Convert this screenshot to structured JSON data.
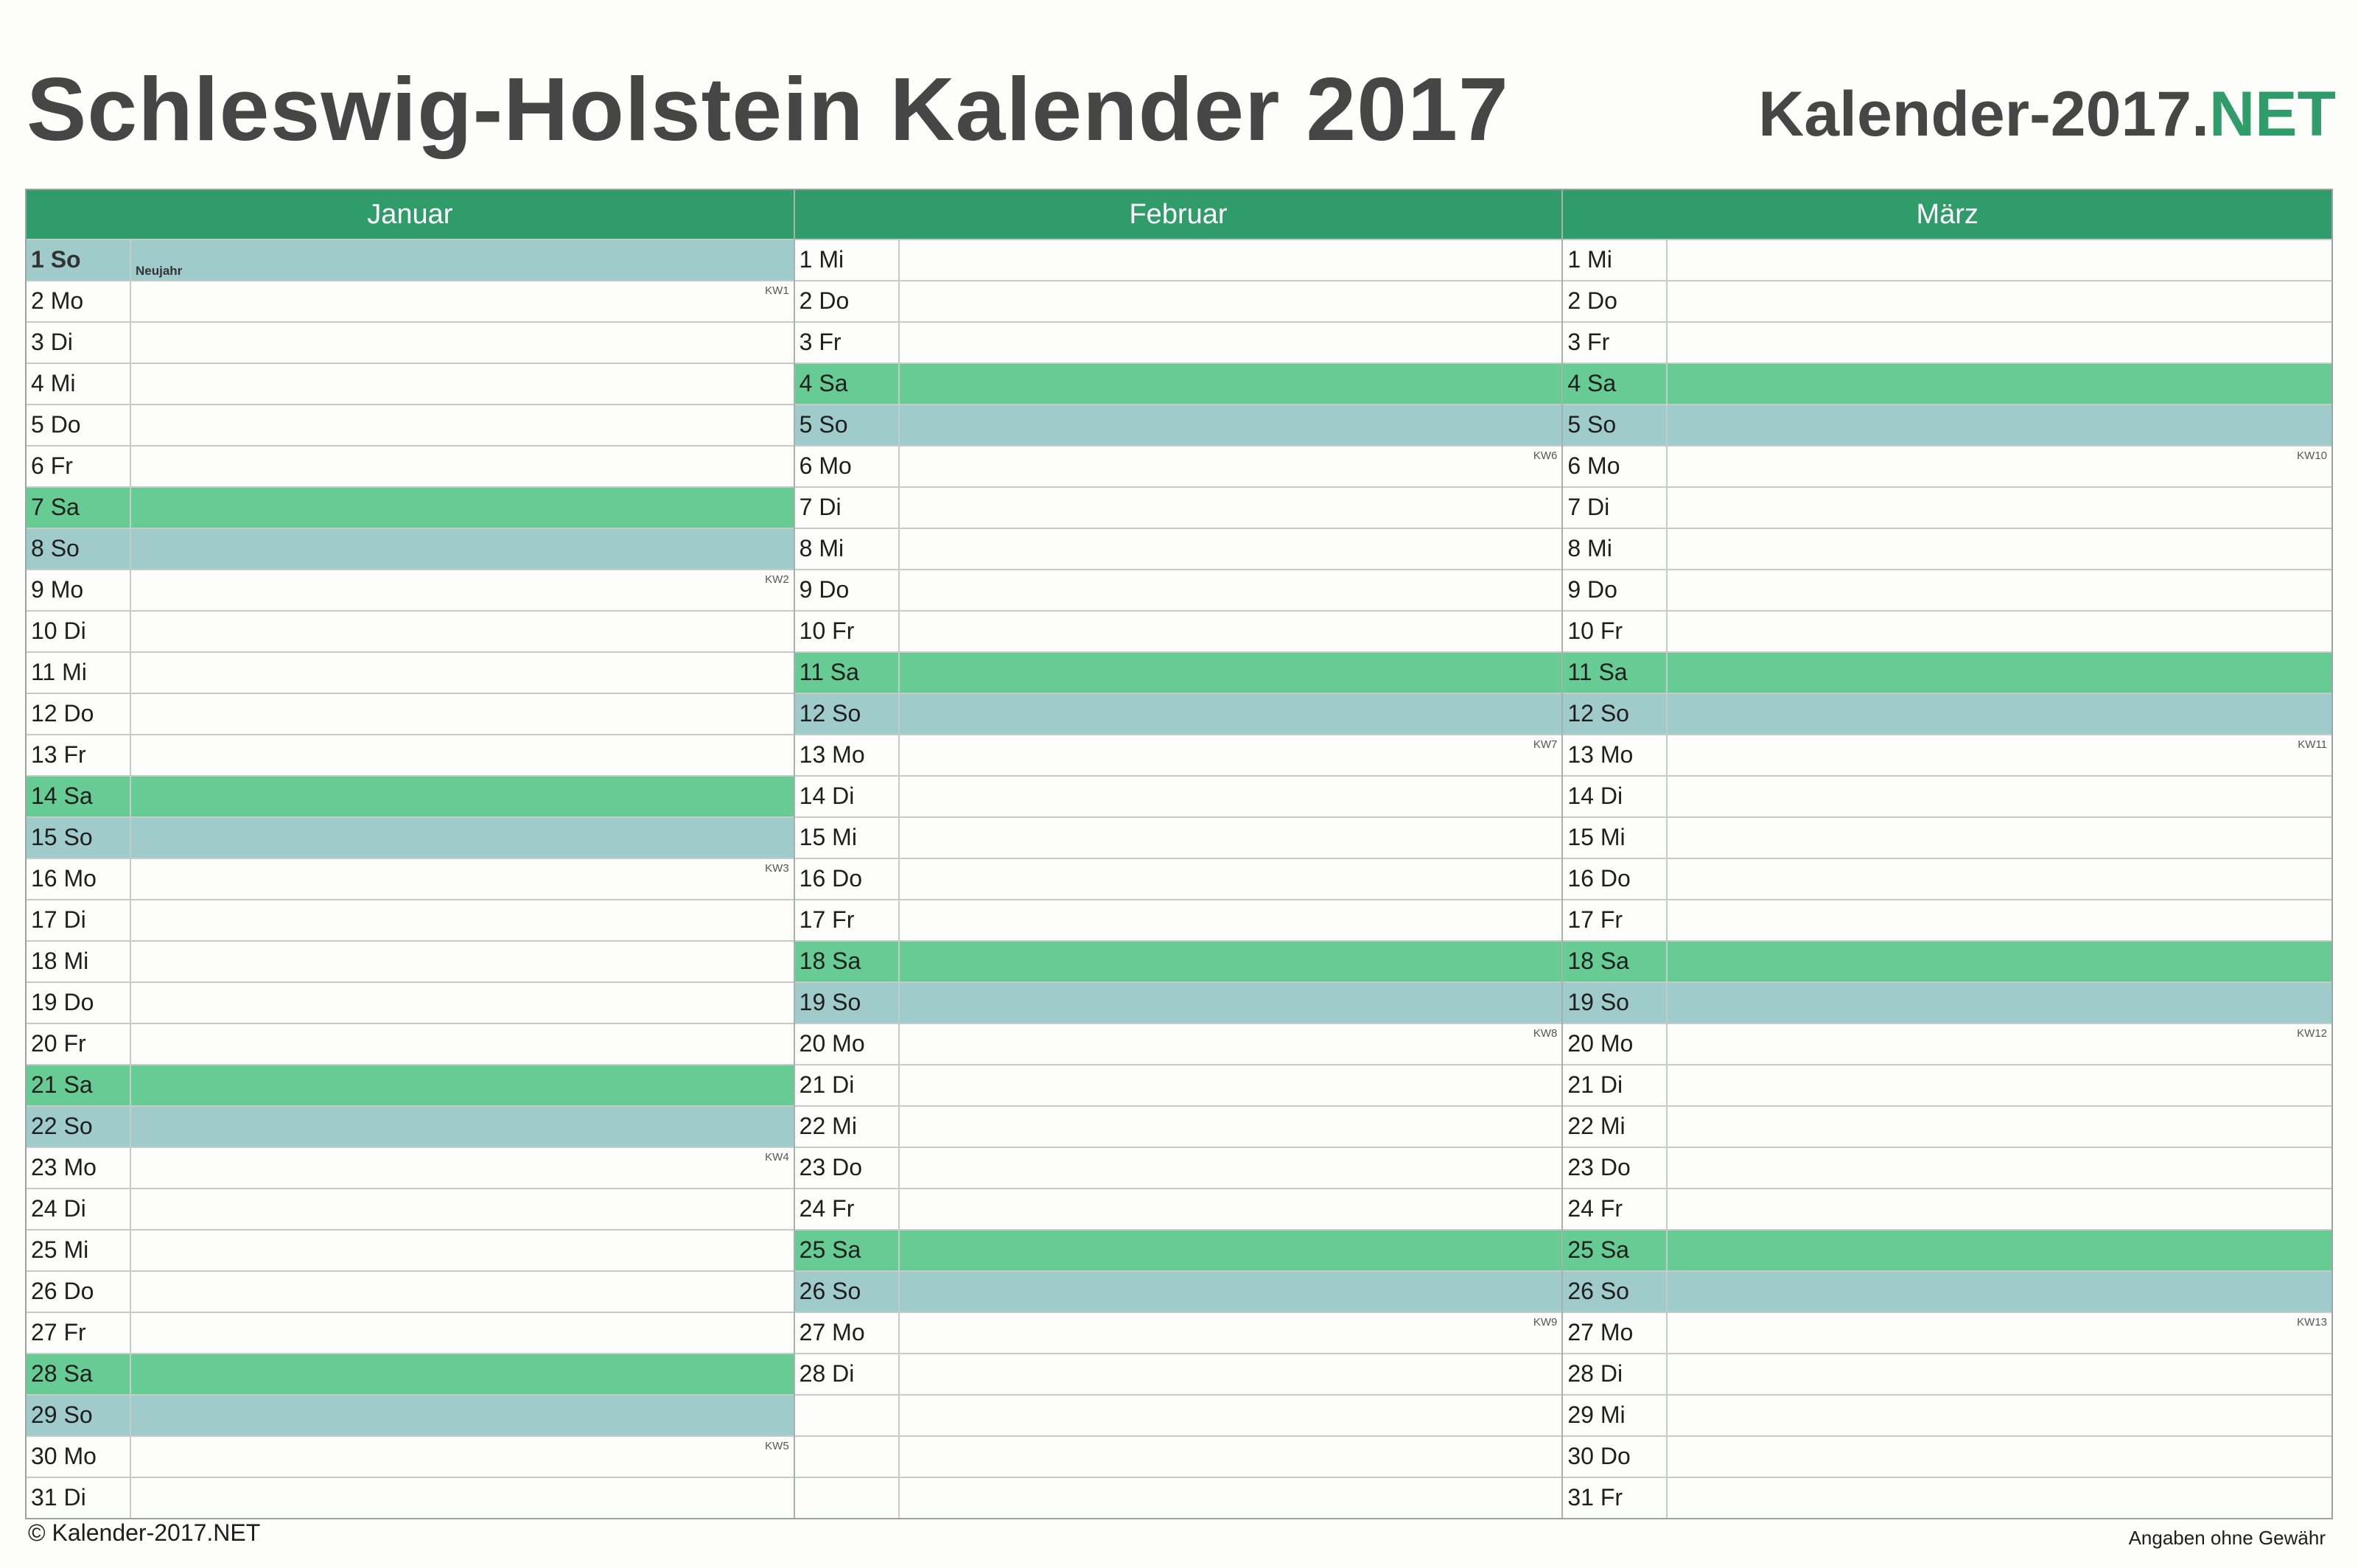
{
  "header": {
    "title": "Schleswig-Holstein Kalender 2017",
    "brand_main": "Kalender-2017.",
    "brand_tld": "NET"
  },
  "colors": {
    "brand_green": "#2f9c6a",
    "saturday": "#66cc94",
    "sunday": "#9fcccb"
  },
  "months": [
    {
      "name": "Januar",
      "days": [
        {
          "label": "1 So",
          "type": "sun",
          "holiday": "Neujahr",
          "bold": true
        },
        {
          "label": "2 Mo",
          "kw": "KW1"
        },
        {
          "label": "3 Di"
        },
        {
          "label": "4 Mi"
        },
        {
          "label": "5 Do"
        },
        {
          "label": "6 Fr"
        },
        {
          "label": "7 Sa",
          "type": "sat"
        },
        {
          "label": "8 So",
          "type": "sun"
        },
        {
          "label": "9 Mo",
          "kw": "KW2"
        },
        {
          "label": "10 Di"
        },
        {
          "label": "11 Mi"
        },
        {
          "label": "12 Do"
        },
        {
          "label": "13 Fr"
        },
        {
          "label": "14 Sa",
          "type": "sat"
        },
        {
          "label": "15 So",
          "type": "sun"
        },
        {
          "label": "16 Mo",
          "kw": "KW3"
        },
        {
          "label": "17 Di"
        },
        {
          "label": "18 Mi"
        },
        {
          "label": "19 Do"
        },
        {
          "label": "20 Fr"
        },
        {
          "label": "21 Sa",
          "type": "sat"
        },
        {
          "label": "22 So",
          "type": "sun"
        },
        {
          "label": "23 Mo",
          "kw": "KW4"
        },
        {
          "label": "24 Di"
        },
        {
          "label": "25 Mi"
        },
        {
          "label": "26 Do"
        },
        {
          "label": "27 Fr"
        },
        {
          "label": "28 Sa",
          "type": "sat"
        },
        {
          "label": "29 So",
          "type": "sun"
        },
        {
          "label": "30 Mo",
          "kw": "KW5"
        },
        {
          "label": "31 Di"
        }
      ]
    },
    {
      "name": "Februar",
      "days": [
        {
          "label": "1 Mi"
        },
        {
          "label": "2 Do"
        },
        {
          "label": "3 Fr"
        },
        {
          "label": "4 Sa",
          "type": "sat"
        },
        {
          "label": "5 So",
          "type": "sun"
        },
        {
          "label": "6 Mo",
          "kw": "KW6"
        },
        {
          "label": "7 Di"
        },
        {
          "label": "8 Mi"
        },
        {
          "label": "9 Do"
        },
        {
          "label": "10 Fr"
        },
        {
          "label": "11 Sa",
          "type": "sat"
        },
        {
          "label": "12 So",
          "type": "sun"
        },
        {
          "label": "13 Mo",
          "kw": "KW7"
        },
        {
          "label": "14 Di"
        },
        {
          "label": "15 Mi"
        },
        {
          "label": "16 Do"
        },
        {
          "label": "17 Fr"
        },
        {
          "label": "18 Sa",
          "type": "sat"
        },
        {
          "label": "19 So",
          "type": "sun"
        },
        {
          "label": "20 Mo",
          "kw": "KW8"
        },
        {
          "label": "21 Di"
        },
        {
          "label": "22 Mi"
        },
        {
          "label": "23 Do"
        },
        {
          "label": "24 Fr"
        },
        {
          "label": "25 Sa",
          "type": "sat"
        },
        {
          "label": "26 So",
          "type": "sun"
        },
        {
          "label": "27 Mo",
          "kw": "KW9"
        },
        {
          "label": "28 Di"
        },
        {
          "label": "",
          "type": "empty"
        },
        {
          "label": "",
          "type": "empty"
        },
        {
          "label": "",
          "type": "empty"
        }
      ]
    },
    {
      "name": "März",
      "days": [
        {
          "label": "1 Mi"
        },
        {
          "label": "2 Do"
        },
        {
          "label": "3 Fr"
        },
        {
          "label": "4 Sa",
          "type": "sat"
        },
        {
          "label": "5 So",
          "type": "sun"
        },
        {
          "label": "6 Mo",
          "kw": "KW10"
        },
        {
          "label": "7 Di"
        },
        {
          "label": "8 Mi"
        },
        {
          "label": "9 Do"
        },
        {
          "label": "10 Fr"
        },
        {
          "label": "11 Sa",
          "type": "sat"
        },
        {
          "label": "12 So",
          "type": "sun"
        },
        {
          "label": "13 Mo",
          "kw": "KW11"
        },
        {
          "label": "14 Di"
        },
        {
          "label": "15 Mi"
        },
        {
          "label": "16 Do"
        },
        {
          "label": "17 Fr"
        },
        {
          "label": "18 Sa",
          "type": "sat"
        },
        {
          "label": "19 So",
          "type": "sun"
        },
        {
          "label": "20 Mo",
          "kw": "KW12"
        },
        {
          "label": "21 Di"
        },
        {
          "label": "22 Mi"
        },
        {
          "label": "23 Do"
        },
        {
          "label": "24 Fr"
        },
        {
          "label": "25 Sa",
          "type": "sat"
        },
        {
          "label": "26 So",
          "type": "sun"
        },
        {
          "label": "27 Mo",
          "kw": "KW13"
        },
        {
          "label": "28 Di"
        },
        {
          "label": "29 Mi"
        },
        {
          "label": "30 Do"
        },
        {
          "label": "31 Fr"
        }
      ]
    }
  ],
  "footer": {
    "copyright": "© Kalender-2017.NET",
    "disclaimer": "Angaben ohne Gewähr"
  }
}
